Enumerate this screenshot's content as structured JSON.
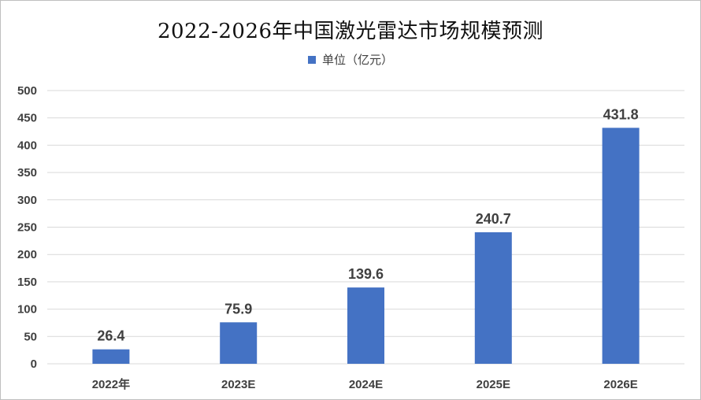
{
  "chart_data": {
    "type": "bar",
    "title": "2022-2026年中国激光雷达市场规模预测",
    "categories": [
      "2022年",
      "2023E",
      "2024E",
      "2025E",
      "2026E"
    ],
    "series": [
      {
        "name": "单位（亿元）",
        "values": [
          26.4,
          75.9,
          139.6,
          240.7,
          431.8
        ]
      }
    ],
    "data_labels": [
      "26.4",
      "75.9",
      "139.6",
      "240.7",
      "431.8"
    ],
    "y_ticks": [
      "0",
      "50",
      "100",
      "150",
      "200",
      "250",
      "300",
      "350",
      "400",
      "450",
      "500"
    ],
    "ylim": [
      0,
      500
    ],
    "grid": true,
    "legend_position": "top",
    "colors": {
      "bar": "#4472c4",
      "grid": "#d9d9d9",
      "text": "#404040"
    }
  }
}
